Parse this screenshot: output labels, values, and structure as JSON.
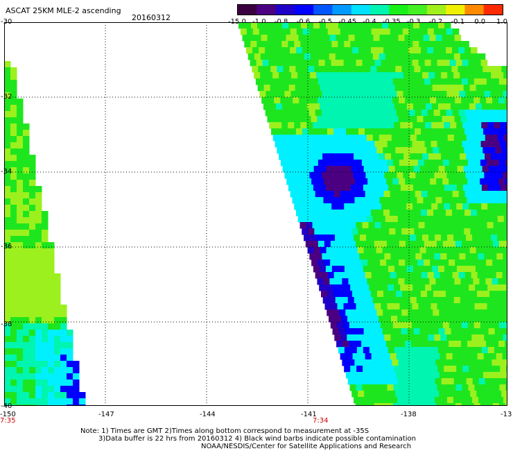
{
  "header": {
    "title": "ASCAT 25KM MLE-2 ascending",
    "date": "20160312"
  },
  "colorbar": {
    "labels": [
      "-15.0",
      "-1.0",
      "-0.8",
      "-0.6",
      "-0.5",
      "-0.45",
      "-0.4",
      "-0.35",
      "-0.3",
      "-0.2",
      "-0.1",
      "0.0",
      "1.0"
    ],
    "colors": [
      "#3a0040",
      "#4b0082",
      "#1f00c8",
      "#0000ff",
      "#0055ff",
      "#0099ff",
      "#00e0ff",
      "#00f5b0",
      "#19f019",
      "#44ef22",
      "#a0f01e",
      "#f0f000",
      "#ff8a00",
      "#ff2a00"
    ]
  },
  "map": {
    "lat_labels": [
      "-30",
      "-32",
      "-34",
      "-36",
      "-38",
      "-40"
    ],
    "lon_labels": [
      "-150",
      "-147",
      "-144",
      "-141",
      "-138",
      "-13"
    ],
    "time_labels": [
      "7:35",
      "7:34"
    ],
    "swath_colors": {
      "green": "#1ee61e",
      "lime": "#9cf01e",
      "cyan": "#00f0ff",
      "aqua": "#00f5b0",
      "blue": "#0000ff",
      "darkblue": "#1f00c8",
      "purple": "#4b0082"
    }
  },
  "notes": {
    "line1": "Note: 1) Times are GMT 2)Times along bottom correspond to measurement at -35S",
    "line2": "3)Data buffer is 22 hrs from 20160312 4) Black wind barbs indicate possible contamination",
    "line3": "NOAA/NESDIS/Center for Satellite Applications and Research"
  }
}
